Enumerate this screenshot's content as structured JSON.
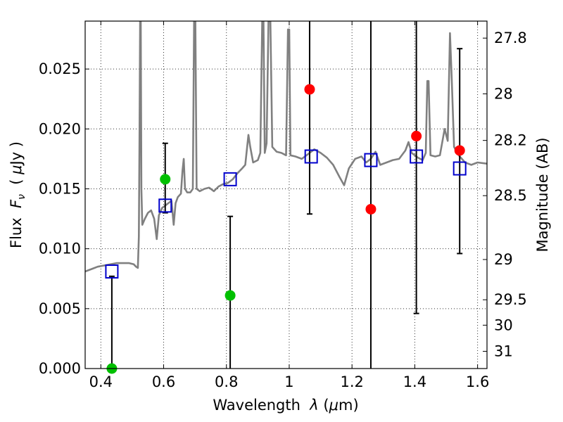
{
  "chart_data": {
    "type": "scatter",
    "xlabel_parts": [
      "Wavelength  ",
      "λ",
      " (",
      "μ",
      "m)"
    ],
    "ylabel_parts": [
      "Flux  ",
      "F",
      "ν",
      "  ( ",
      "μ",
      "Jy )"
    ],
    "y2label": "Magnitude (AB)",
    "xlim": [
      0.35,
      1.63
    ],
    "ylim": [
      0.0,
      0.029
    ],
    "grid": true,
    "x_ticks": [
      0.4,
      0.6,
      0.8,
      1.0,
      1.2,
      1.4,
      1.6
    ],
    "x_tick_labels": [
      "0.4",
      "0.6",
      "0.8",
      "1",
      "1.2",
      "1.4",
      "1.6"
    ],
    "y_ticks": [
      0.0,
      0.005,
      0.01,
      0.015,
      0.02,
      0.025
    ],
    "y_tick_labels": [
      "0.000",
      "0.005",
      "0.010",
      "0.015",
      "0.020",
      "0.025"
    ],
    "y2_ticks": [
      {
        "flux": 0.02758,
        "label": "27.8"
      },
      {
        "flux": 0.02293,
        "label": "28"
      },
      {
        "flux": 0.01904,
        "label": "28.2"
      },
      {
        "flux": 0.01443,
        "label": "28.5"
      },
      {
        "flux": 0.0091,
        "label": "29"
      },
      {
        "flux": 0.00574,
        "label": "29.5"
      },
      {
        "flux": 0.00362,
        "label": "30"
      },
      {
        "flux": 0.00144,
        "label": "31"
      }
    ],
    "model_color": "#808080",
    "model_spectrum": [
      [
        0.35,
        0.0081
      ],
      [
        0.37,
        0.0083
      ],
      [
        0.39,
        0.0085
      ],
      [
        0.41,
        0.0086
      ],
      [
        0.43,
        0.0087
      ],
      [
        0.45,
        0.0088
      ],
      [
        0.47,
        0.0088
      ],
      [
        0.49,
        0.0088
      ],
      [
        0.505,
        0.0087
      ],
      [
        0.512,
        0.0085
      ],
      [
        0.518,
        0.0084
      ],
      [
        0.521,
        0.011
      ],
      [
        0.523,
        0.019
      ],
      [
        0.525,
        0.029
      ],
      [
        0.527,
        0.029
      ],
      [
        0.529,
        0.015
      ],
      [
        0.532,
        0.012
      ],
      [
        0.54,
        0.0125
      ],
      [
        0.55,
        0.013
      ],
      [
        0.56,
        0.0132
      ],
      [
        0.57,
        0.0125
      ],
      [
        0.578,
        0.0108
      ],
      [
        0.585,
        0.0128
      ],
      [
        0.595,
        0.0134
      ],
      [
        0.605,
        0.0136
      ],
      [
        0.615,
        0.0138
      ],
      [
        0.625,
        0.014
      ],
      [
        0.632,
        0.012
      ],
      [
        0.638,
        0.0138
      ],
      [
        0.645,
        0.0143
      ],
      [
        0.655,
        0.0146
      ],
      [
        0.66,
        0.0165
      ],
      [
        0.664,
        0.0175
      ],
      [
        0.668,
        0.015
      ],
      [
        0.675,
        0.0147
      ],
      [
        0.685,
        0.0147
      ],
      [
        0.693,
        0.015
      ],
      [
        0.697,
        0.029
      ],
      [
        0.701,
        0.029
      ],
      [
        0.705,
        0.015
      ],
      [
        0.715,
        0.0148
      ],
      [
        0.73,
        0.015
      ],
      [
        0.745,
        0.0151
      ],
      [
        0.76,
        0.0148
      ],
      [
        0.775,
        0.0152
      ],
      [
        0.79,
        0.0154
      ],
      [
        0.805,
        0.0155
      ],
      [
        0.82,
        0.0158
      ],
      [
        0.835,
        0.0163
      ],
      [
        0.85,
        0.0167
      ],
      [
        0.86,
        0.017
      ],
      [
        0.87,
        0.0195
      ],
      [
        0.876,
        0.0185
      ],
      [
        0.885,
        0.0172
      ],
      [
        0.9,
        0.0174
      ],
      [
        0.908,
        0.018
      ],
      [
        0.914,
        0.029
      ],
      [
        0.918,
        0.029
      ],
      [
        0.922,
        0.018
      ],
      [
        0.928,
        0.0188
      ],
      [
        0.934,
        0.029
      ],
      [
        0.94,
        0.029
      ],
      [
        0.946,
        0.0185
      ],
      [
        0.96,
        0.0181
      ],
      [
        0.975,
        0.018
      ],
      [
        0.99,
        0.0178
      ],
      [
        0.996,
        0.0283
      ],
      [
        1.0,
        0.0283
      ],
      [
        1.004,
        0.0178
      ],
      [
        1.02,
        0.0177
      ],
      [
        1.04,
        0.0175
      ],
      [
        1.06,
        0.0179
      ],
      [
        1.08,
        0.0183
      ],
      [
        1.1,
        0.018
      ],
      [
        1.12,
        0.0176
      ],
      [
        1.14,
        0.017
      ],
      [
        1.16,
        0.016
      ],
      [
        1.175,
        0.0153
      ],
      [
        1.19,
        0.0167
      ],
      [
        1.21,
        0.0175
      ],
      [
        1.23,
        0.0177
      ],
      [
        1.245,
        0.0172
      ],
      [
        1.26,
        0.0175
      ],
      [
        1.275,
        0.0181
      ],
      [
        1.29,
        0.017
      ],
      [
        1.31,
        0.0172
      ],
      [
        1.33,
        0.0174
      ],
      [
        1.35,
        0.0175
      ],
      [
        1.37,
        0.0182
      ],
      [
        1.38,
        0.0189
      ],
      [
        1.39,
        0.018
      ],
      [
        1.41,
        0.0176
      ],
      [
        1.425,
        0.0174
      ],
      [
        1.435,
        0.018
      ],
      [
        1.44,
        0.024
      ],
      [
        1.444,
        0.024
      ],
      [
        1.45,
        0.0178
      ],
      [
        1.465,
        0.0177
      ],
      [
        1.48,
        0.0178
      ],
      [
        1.495,
        0.02
      ],
      [
        1.505,
        0.019
      ],
      [
        1.512,
        0.028
      ],
      [
        1.518,
        0.024
      ],
      [
        1.525,
        0.0185
      ],
      [
        1.54,
        0.0178
      ],
      [
        1.56,
        0.0172
      ],
      [
        1.58,
        0.017
      ],
      [
        1.6,
        0.0172
      ],
      [
        1.63,
        0.0171
      ]
    ],
    "observed": {
      "color_detected": "#ff0000",
      "color_other": "#00c000",
      "points": [
        {
          "x": 0.435,
          "y": 0.0,
          "color": "#00c000"
        },
        {
          "x": 0.605,
          "y": 0.0158,
          "color": "#00c000"
        },
        {
          "x": 0.812,
          "y": 0.0061,
          "color": "#00c000"
        },
        {
          "x": 1.065,
          "y": 0.0233,
          "color": "#ff0000"
        },
        {
          "x": 1.26,
          "y": 0.0133,
          "color": "#ff0000"
        },
        {
          "x": 1.405,
          "y": 0.0194,
          "color": "#ff0000"
        },
        {
          "x": 1.543,
          "y": 0.0182,
          "color": "#ff0000"
        }
      ]
    },
    "error_bars": [
      {
        "x": 0.435,
        "low": 0.0,
        "high": 0.0077
      },
      {
        "x": 0.605,
        "low": 0.013,
        "high": 0.0188
      },
      {
        "x": 0.812,
        "low": 0.0,
        "high": 0.0127
      },
      {
        "x": 1.065,
        "low": 0.0129,
        "high": 0.029
      },
      {
        "x": 1.26,
        "low": 0.0,
        "high": 0.029
      },
      {
        "x": 1.405,
        "low": 0.0046,
        "high": 0.029
      },
      {
        "x": 1.543,
        "low": 0.0096,
        "high": 0.0267
      }
    ],
    "model_bands": {
      "color": "#0000cc",
      "points": [
        {
          "x": 0.435,
          "y": 0.0081
        },
        {
          "x": 0.605,
          "y": 0.0136
        },
        {
          "x": 0.812,
          "y": 0.0158
        },
        {
          "x": 1.07,
          "y": 0.0177
        },
        {
          "x": 1.26,
          "y": 0.0174
        },
        {
          "x": 1.405,
          "y": 0.0177
        },
        {
          "x": 1.543,
          "y": 0.0167
        }
      ]
    }
  }
}
